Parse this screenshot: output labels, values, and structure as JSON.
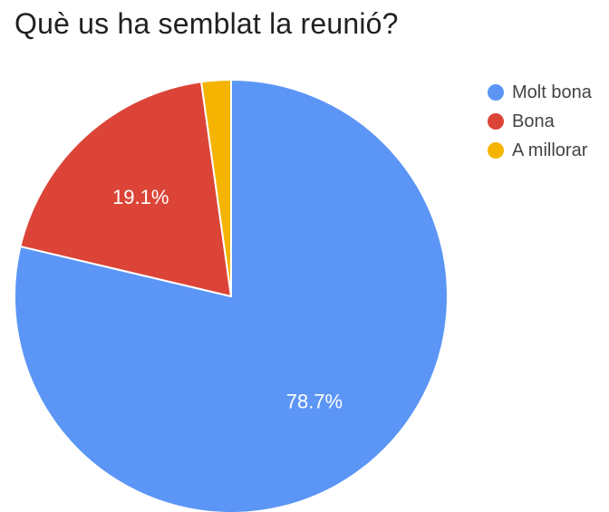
{
  "chart_data": {
    "type": "pie",
    "title": "Què us ha semblat la reunió?",
    "legend_position": "right",
    "slices": [
      {
        "label": "Molt bona",
        "percent": 78.7,
        "value_label": "78.7%",
        "color": "#5B95F5"
      },
      {
        "label": "Bona",
        "percent": 19.1,
        "value_label": "19.1%",
        "color": "#DB4437"
      },
      {
        "label": "A millorar",
        "percent": 2.2,
        "value_label": "",
        "color": "#F4B400"
      }
    ]
  }
}
